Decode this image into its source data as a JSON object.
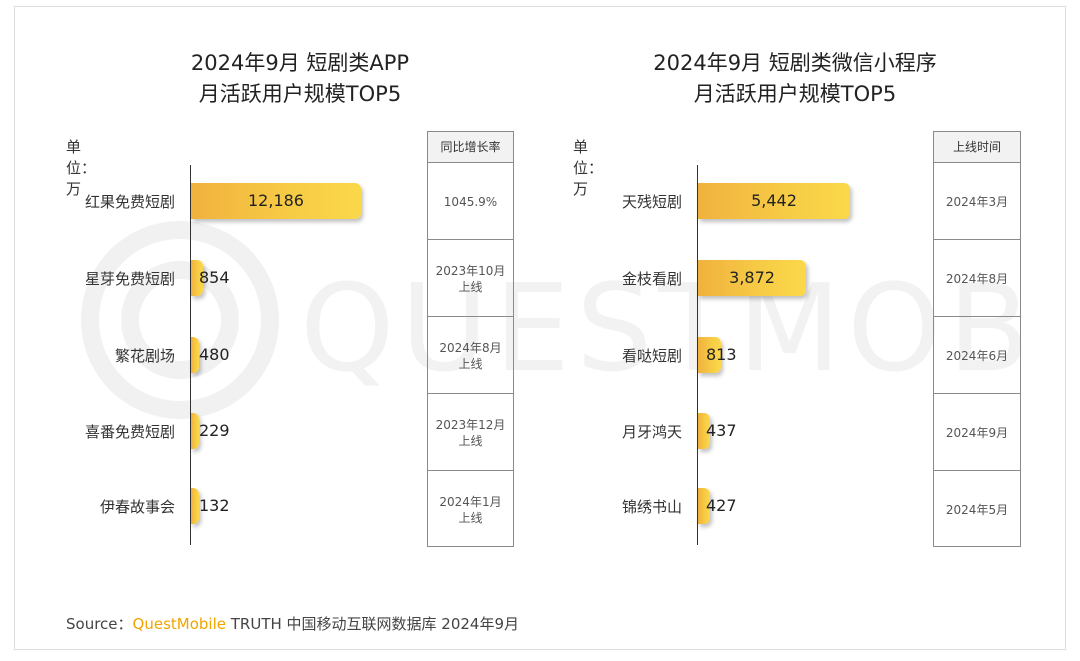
{
  "source": {
    "prefix": "Source：",
    "brand": "QuestMobile",
    "suffix": " TRUTH 中国移动互联网数据库 2024年9月"
  },
  "colors": {
    "bar": "#f5c242",
    "brand": "#f0a500"
  },
  "chart_data": [
    {
      "type": "bar",
      "orientation": "horizontal",
      "title": "2024年9月 短剧类APP\n月活跃用户规模TOP5",
      "title_lines": [
        "2024年9月 短剧类APP",
        "月活跃用户规模TOP5"
      ],
      "unit": "单位：万",
      "categories": [
        "红果免费短剧",
        "星芽免费短剧",
        "繁花剧场",
        "喜番免费短剧",
        "伊春故事会"
      ],
      "values": [
        12186,
        854,
        480,
        229,
        132
      ],
      "value_labels": [
        "12,186",
        "854",
        "480",
        "229",
        "132"
      ],
      "side_header": "同比增长率",
      "side_values": [
        "1045.9%",
        "2023年10月\n上线",
        "2024年8月\n上线",
        "2023年12月\n上线",
        "2024年1月\n上线"
      ]
    },
    {
      "type": "bar",
      "orientation": "horizontal",
      "title": "2024年9月 短剧类微信小程序\n月活跃用户规模TOP5",
      "title_lines": [
        "2024年9月 短剧类微信小程序",
        "月活跃用户规模TOP5"
      ],
      "unit": "单位：万",
      "categories": [
        "天残短剧",
        "金枝看剧",
        "看哒短剧",
        "月牙鸿天",
        "锦绣书山"
      ],
      "values": [
        5442,
        3872,
        813,
        437,
        427
      ],
      "value_labels": [
        "5,442",
        "3,872",
        "813",
        "437",
        "427"
      ],
      "side_header": "上线时间",
      "side_values": [
        "2024年3月",
        "2024年8月",
        "2024年6月",
        "2024年9月",
        "2024年5月"
      ]
    }
  ]
}
